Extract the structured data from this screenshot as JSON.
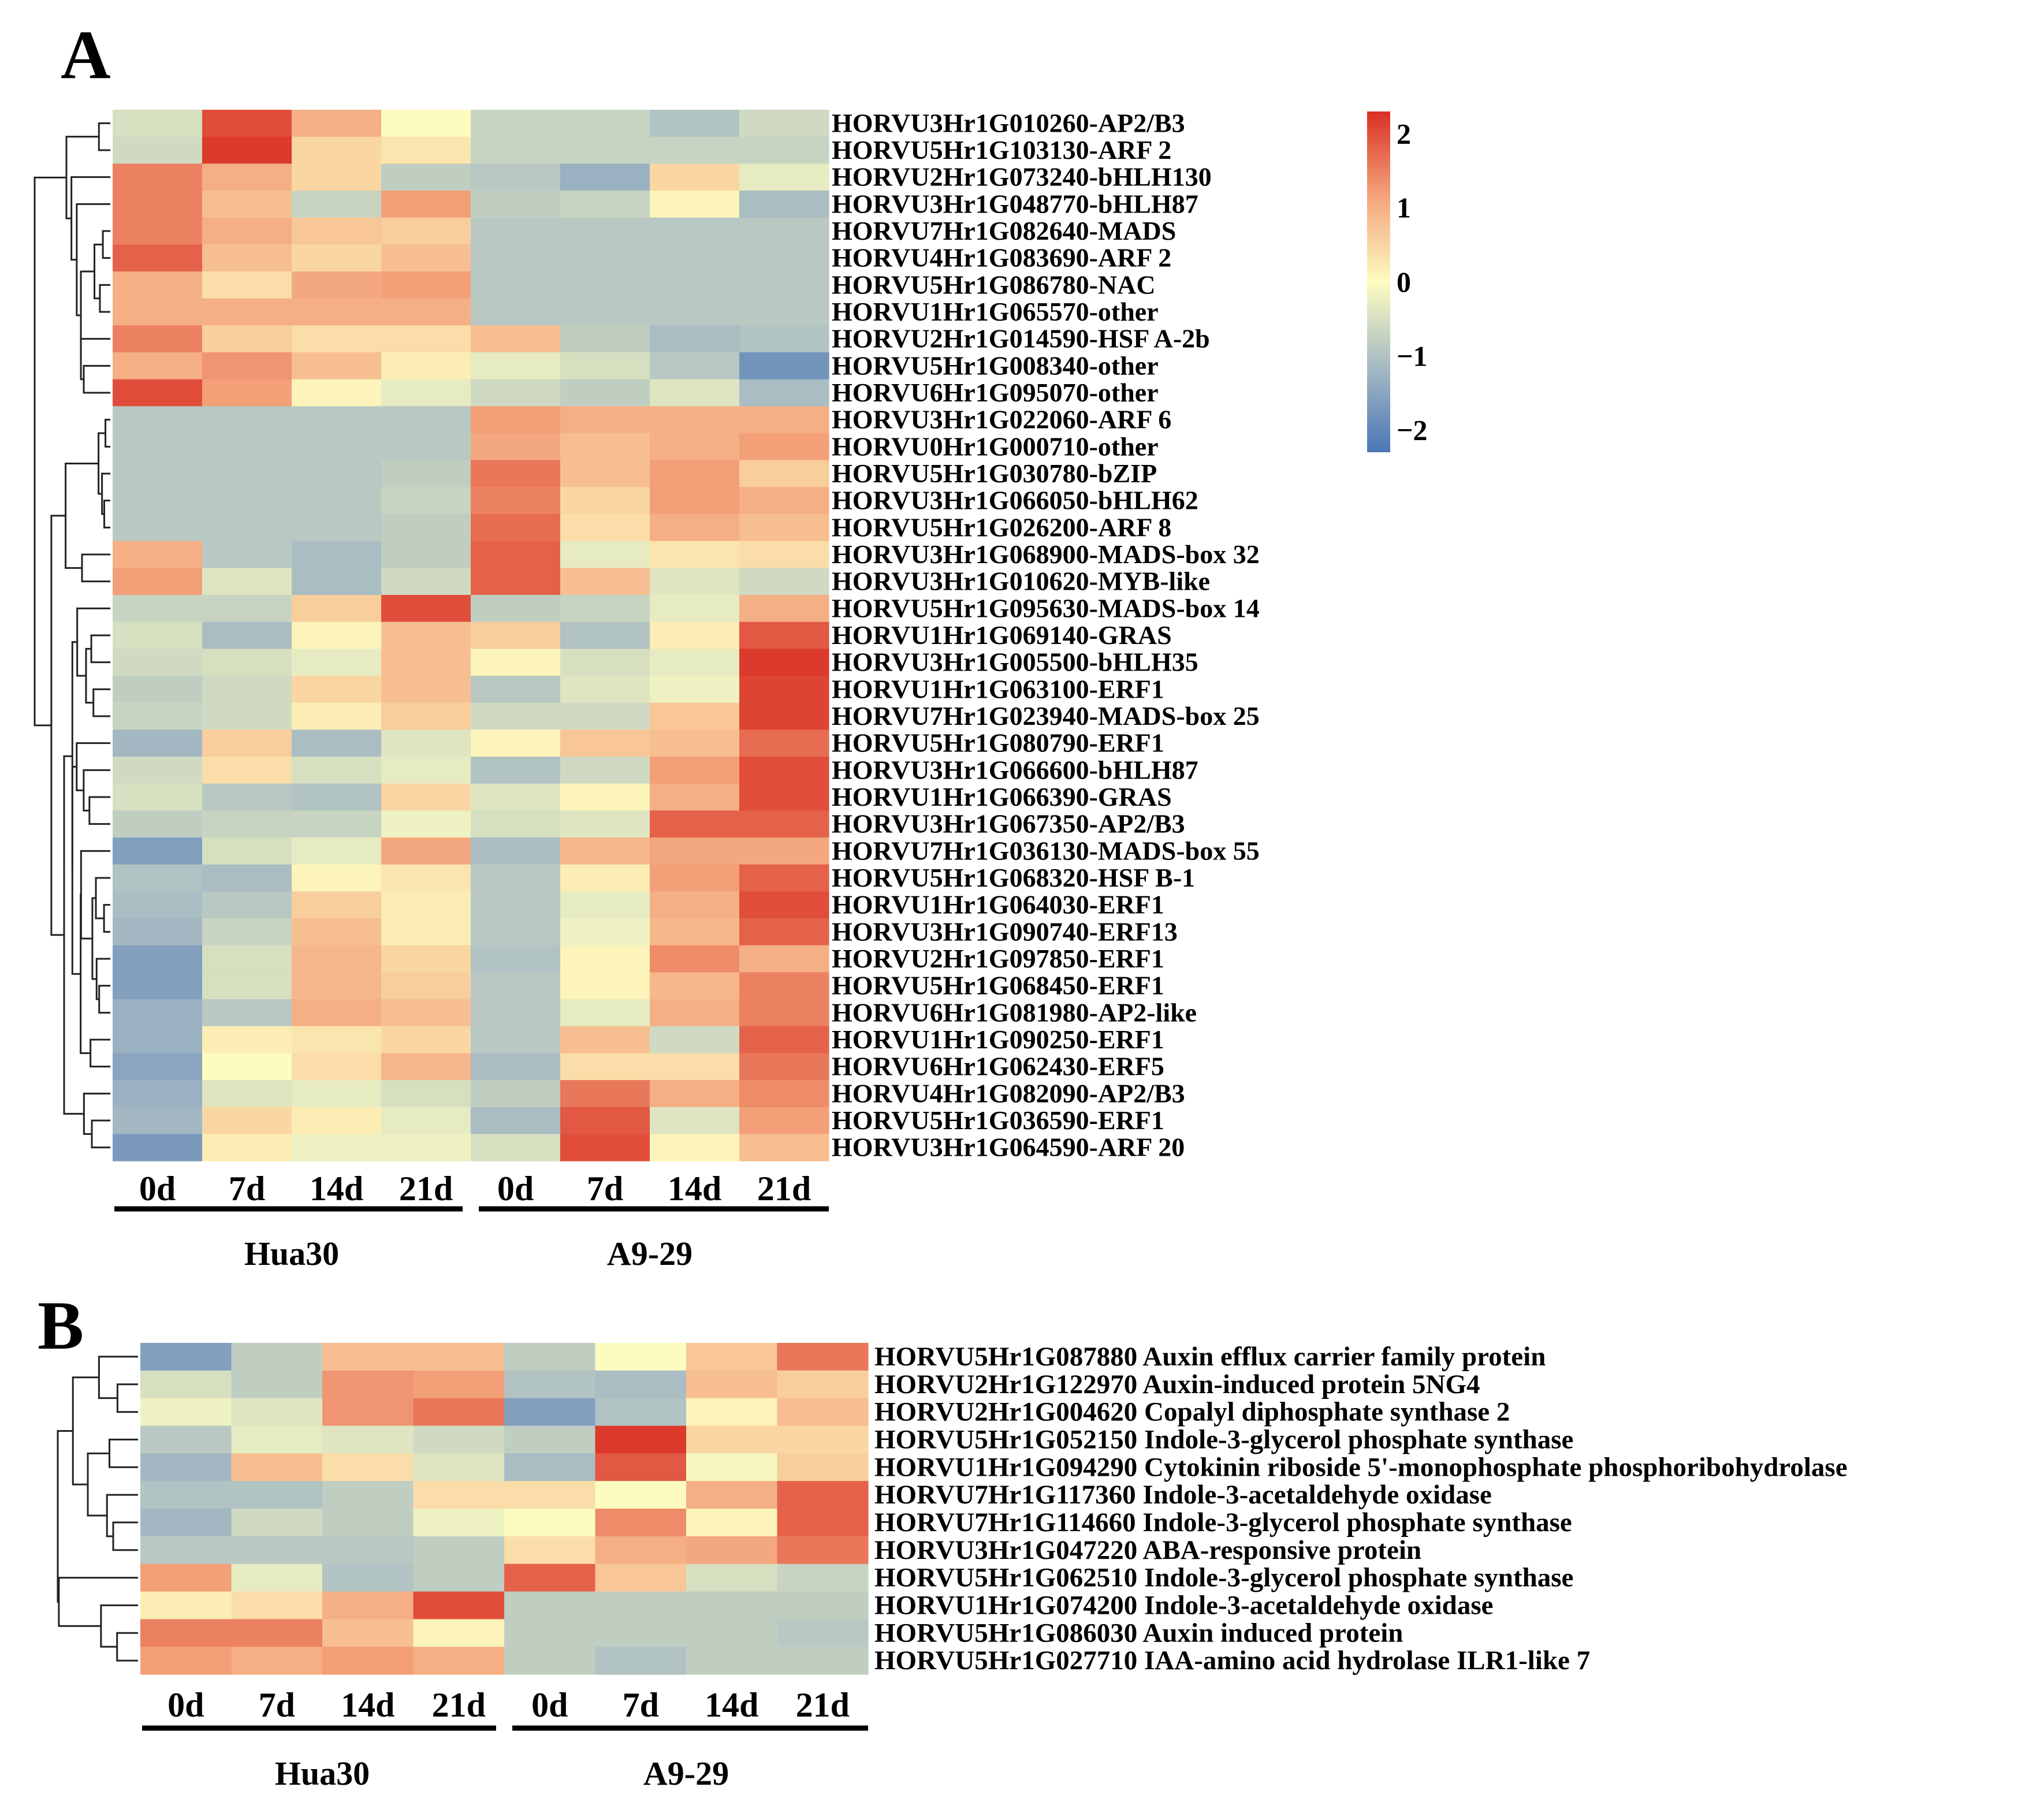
{
  "chart_data": [
    {
      "type": "heatmap",
      "panel": "A",
      "columns": [
        "0d",
        "7d",
        "14d",
        "21d",
        "0d",
        "7d",
        "14d",
        "21d"
      ],
      "groups": [
        "Hua30",
        "A9-29"
      ],
      "rows": [
        "HORVU3Hr1G010260-AP2/B3",
        "HORVU5Hr1G103130-ARF 2",
        "HORVU2Hr1G073240-bHLH130",
        "HORVU3Hr1G048770-bHLH87",
        "HORVU7Hr1G082640-MADS",
        "HORVU4Hr1G083690-ARF 2",
        "HORVU5Hr1G086780-NAC",
        "HORVU1Hr1G065570-other",
        "HORVU2Hr1G014590-HSF A-2b",
        "HORVU5Hr1G008340-other",
        "HORVU6Hr1G095070-other",
        "HORVU3Hr1G022060-ARF 6",
        "HORVU0Hr1G000710-other",
        "HORVU5Hr1G030780-bZIP",
        "HORVU3Hr1G066050-bHLH62",
        "HORVU5Hr1G026200-ARF 8",
        "HORVU3Hr1G068900-MADS-box 32",
        "HORVU3Hr1G010620-MYB-like",
        "HORVU5Hr1G095630-MADS-box 14",
        "HORVU1Hr1G069140-GRAS",
        "HORVU3Hr1G005500-bHLH35",
        "HORVU1Hr1G063100-ERF1",
        "HORVU7Hr1G023940-MADS-box 25",
        "HORVU5Hr1G080790-ERF1",
        "HORVU3Hr1G066600-bHLH87",
        "HORVU1Hr1G066390-GRAS",
        "HORVU3Hr1G067350-AP2/B3",
        "HORVU7Hr1G036130-MADS-box 55",
        "HORVU5Hr1G068320-HSF B-1",
        "HORVU1Hr1G064030-ERF1",
        "HORVU3Hr1G090740-ERF13",
        "HORVU2Hr1G097850-ERF1",
        "HORVU5Hr1G068450-ERF1",
        "HORVU6Hr1G081980-AP2-like",
        "HORVU1Hr1G090250-ERF1",
        "HORVU6Hr1G062430-ERF5",
        "HORVU4Hr1G082090-AP2/B3",
        "HORVU5Hr1G036590-ERF1",
        "HORVU3Hr1G064590-ARF 20"
      ],
      "values": [
        [
          -0.5,
          2.0,
          1.0,
          0.0,
          -0.7,
          -0.7,
          -1.0,
          -0.6
        ],
        [
          -0.6,
          2.2,
          0.5,
          0.3,
          -0.7,
          -0.7,
          -0.7,
          -0.7
        ],
        [
          1.5,
          1.0,
          0.5,
          -0.8,
          -0.9,
          -1.3,
          0.5,
          -0.3
        ],
        [
          1.5,
          0.8,
          -0.7,
          1.2,
          -0.8,
          -0.7,
          0.1,
          -1.1
        ],
        [
          1.5,
          1.0,
          0.7,
          0.6,
          -0.9,
          -0.9,
          -0.9,
          -0.9
        ],
        [
          1.8,
          0.8,
          0.5,
          0.8,
          -0.9,
          -0.9,
          -0.9,
          -0.9
        ],
        [
          1.0,
          0.4,
          1.1,
          1.2,
          -0.9,
          -0.9,
          -0.9,
          -0.9
        ],
        [
          1.0,
          1.0,
          1.0,
          1.0,
          -0.9,
          -0.9,
          -0.9,
          -0.9
        ],
        [
          1.5,
          0.6,
          0.4,
          0.4,
          0.8,
          -0.8,
          -1.1,
          -1.0
        ],
        [
          1.0,
          1.3,
          0.8,
          0.2,
          -0.3,
          -0.5,
          -0.9,
          -1.8
        ],
        [
          2.0,
          1.2,
          0.1,
          -0.3,
          -0.6,
          -0.8,
          -0.4,
          -1.1
        ],
        [
          -0.9,
          -0.9,
          -0.9,
          -0.9,
          1.2,
          1.0,
          1.0,
          1.0
        ],
        [
          -0.9,
          -0.9,
          -0.9,
          -0.9,
          1.1,
          0.8,
          1.0,
          1.2
        ],
        [
          -0.9,
          -0.9,
          -0.9,
          -0.8,
          1.6,
          0.8,
          1.2,
          0.6
        ],
        [
          -0.9,
          -0.9,
          -0.9,
          -0.7,
          1.5,
          0.5,
          1.2,
          1.0
        ],
        [
          -0.9,
          -0.9,
          -0.9,
          -0.8,
          1.7,
          0.4,
          1.0,
          0.8
        ],
        [
          1.0,
          -0.9,
          -1.1,
          -0.8,
          1.8,
          -0.3,
          0.3,
          0.4
        ],
        [
          1.2,
          -0.4,
          -1.1,
          -0.6,
          1.8,
          0.8,
          -0.4,
          -0.6
        ],
        [
          -0.7,
          -0.7,
          0.6,
          2.0,
          -0.8,
          -0.7,
          -0.3,
          1.0
        ],
        [
          -0.5,
          -1.1,
          0.1,
          0.8,
          0.6,
          -1.0,
          0.2,
          1.9
        ],
        [
          -0.6,
          -0.5,
          -0.3,
          0.8,
          0.1,
          -0.5,
          -0.3,
          2.2
        ],
        [
          -0.8,
          -0.6,
          0.5,
          0.8,
          -0.9,
          -0.4,
          -0.2,
          2.1
        ],
        [
          -0.7,
          -0.6,
          0.2,
          0.6,
          -0.6,
          -0.6,
          0.7,
          2.1
        ],
        [
          -1.2,
          0.6,
          -1.1,
          -0.4,
          0.1,
          0.7,
          0.8,
          1.7
        ],
        [
          -0.6,
          0.4,
          -0.5,
          -0.3,
          -1.0,
          -0.6,
          1.2,
          2.0
        ],
        [
          -0.5,
          -0.9,
          -1.0,
          0.5,
          -0.4,
          0.1,
          1.0,
          2.0
        ],
        [
          -0.8,
          -0.7,
          -0.7,
          -0.2,
          -0.5,
          -0.4,
          1.8,
          1.8
        ],
        [
          -1.6,
          -0.5,
          -0.3,
          1.1,
          -1.1,
          0.9,
          1.1,
          1.1
        ],
        [
          -1.0,
          -1.1,
          0.1,
          0.3,
          -0.9,
          0.2,
          1.2,
          1.8
        ],
        [
          -1.1,
          -0.9,
          0.6,
          0.2,
          -0.9,
          -0.3,
          1.0,
          2.0
        ],
        [
          -1.2,
          -0.7,
          0.8,
          0.2,
          -0.9,
          -0.2,
          0.9,
          1.8
        ],
        [
          -1.6,
          -0.5,
          0.9,
          0.5,
          -1.0,
          0.1,
          1.4,
          1.0
        ],
        [
          -1.6,
          -0.5,
          0.9,
          0.6,
          -0.9,
          0.1,
          0.9,
          1.5
        ],
        [
          -1.3,
          -0.9,
          1.0,
          0.8,
          -0.9,
          -0.3,
          1.0,
          1.5
        ],
        [
          -1.3,
          0.2,
          0.3,
          0.5,
          -0.9,
          0.8,
          -0.6,
          1.8
        ],
        [
          -1.5,
          0.0,
          0.4,
          0.9,
          -1.1,
          0.4,
          0.4,
          1.6
        ],
        [
          -1.3,
          -0.4,
          -0.3,
          -0.5,
          -0.8,
          1.6,
          1.0,
          1.4
        ],
        [
          -1.2,
          0.5,
          0.2,
          -0.3,
          -1.1,
          1.9,
          -0.4,
          1.2
        ],
        [
          -1.7,
          0.2,
          -0.2,
          -0.2,
          -0.5,
          2.0,
          0.1,
          0.8
        ]
      ],
      "colorbar": {
        "ticks": [
          "2",
          "1",
          "0",
          "−1",
          "−2"
        ],
        "tick_values": [
          2,
          1,
          0,
          -1,
          -2
        ],
        "range": [
          -2.3,
          2.3
        ]
      },
      "colors": {
        "low": "#4a76b5",
        "mid_low": "#a6bac3",
        "mid": "#fdfcc0",
        "mid_high": "#f4a47c",
        "high": "#d93024"
      }
    },
    {
      "type": "heatmap",
      "panel": "B",
      "columns": [
        "0d",
        "7d",
        "14d",
        "21d",
        "0d",
        "7d",
        "14d",
        "21d"
      ],
      "groups": [
        "Hua30",
        "A9-29"
      ],
      "rows": [
        "HORVU5Hr1G087880 Auxin efflux carrier family protein",
        "HORVU2Hr1G122970 Auxin-induced protein 5NG4",
        "HORVU2Hr1G004620 Copalyl diphosphate synthase 2",
        "HORVU5Hr1G052150 Indole-3-glycerol phosphate synthase",
        "HORVU1Hr1G094290 Cytokinin riboside 5'-monophosphate phosphoribohydrolase",
        "HORVU7Hr1G117360 Indole-3-acetaldehyde oxidase",
        "HORVU7Hr1G114660 Indole-3-glycerol phosphate synthase",
        "HORVU3Hr1G047220 ABA-responsive protein",
        "HORVU5Hr1G062510 Indole-3-glycerol phosphate synthase",
        "HORVU1Hr1G074200 Indole-3-acetaldehyde oxidase",
        "HORVU5Hr1G086030 Auxin induced protein",
        "HORVU5Hr1G027710 IAA-amino acid hydrolase ILR1-like 7"
      ],
      "values": [
        [
          -1.6,
          -0.8,
          0.8,
          0.8,
          -0.8,
          0.0,
          0.7,
          1.6
        ],
        [
          -0.5,
          -0.8,
          1.3,
          1.2,
          -1.0,
          -1.1,
          0.8,
          0.6
        ],
        [
          -0.2,
          -0.4,
          1.3,
          1.6,
          -1.6,
          -1.0,
          0.1,
          0.8
        ],
        [
          -0.9,
          -0.3,
          -0.4,
          -0.6,
          -0.8,
          2.2,
          0.5,
          0.5
        ],
        [
          -1.2,
          0.8,
          0.4,
          -0.4,
          -1.1,
          1.9,
          -0.1,
          0.6
        ],
        [
          -1.0,
          -1.0,
          -0.8,
          0.4,
          0.4,
          0.0,
          1.0,
          1.8
        ],
        [
          -1.2,
          -0.6,
          -0.8,
          -0.2,
          0.0,
          1.4,
          0.1,
          1.8
        ],
        [
          -0.9,
          -0.9,
          -0.9,
          -0.8,
          0.4,
          1.0,
          1.1,
          1.6
        ],
        [
          1.2,
          -0.3,
          -1.0,
          -0.8,
          1.8,
          0.7,
          -0.5,
          -0.7
        ],
        [
          0.2,
          0.4,
          1.0,
          2.0,
          -0.8,
          -0.8,
          -0.8,
          -0.8
        ],
        [
          1.5,
          1.5,
          0.8,
          0.1,
          -0.8,
          -0.8,
          -0.8,
          -0.9
        ],
        [
          1.2,
          1.0,
          1.2,
          1.0,
          -0.8,
          -1.0,
          -0.8,
          -0.8
        ]
      ]
    }
  ]
}
